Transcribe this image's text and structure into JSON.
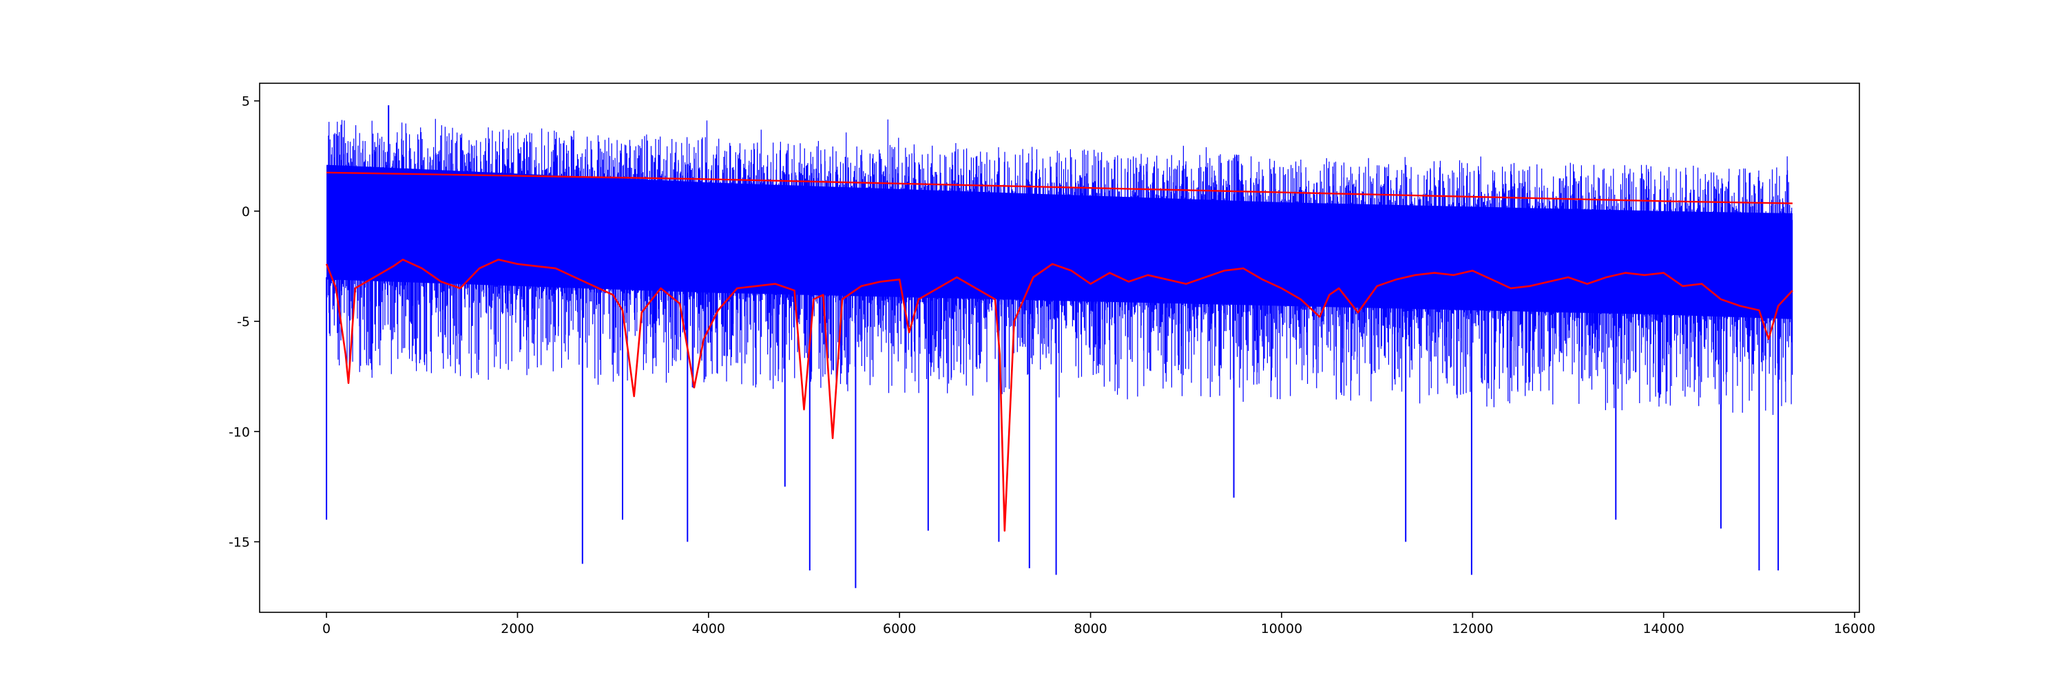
{
  "chart_data": {
    "type": "line",
    "title": "",
    "xlabel": "",
    "ylabel": "",
    "xlim": [
      -700,
      16050
    ],
    "ylim": [
      -18.2,
      5.8
    ],
    "grid": false,
    "legend": "none",
    "x_ticks": [
      {
        "value": 0,
        "label": "0"
      },
      {
        "value": 2000,
        "label": "2000"
      },
      {
        "value": 4000,
        "label": "4000"
      },
      {
        "value": 6000,
        "label": "6000"
      },
      {
        "value": 8000,
        "label": "8000"
      },
      {
        "value": 10000,
        "label": "10000"
      },
      {
        "value": 12000,
        "label": "12000"
      },
      {
        "value": 14000,
        "label": "14000"
      },
      {
        "value": 16000,
        "label": "16000"
      }
    ],
    "y_ticks": [
      {
        "value": 5,
        "label": "5"
      },
      {
        "value": 0,
        "label": "0"
      },
      {
        "value": -5,
        "label": "-5"
      },
      {
        "value": -10,
        "label": "-10"
      },
      {
        "value": -15,
        "label": "-15"
      }
    ],
    "series": [
      {
        "color": "#0000ff",
        "kind": "dense-band",
        "x_range": [
          0,
          15350
        ],
        "band_envelope": {
          "x": [
            0,
            2000,
            4000,
            6000,
            8000,
            10000,
            12000,
            14000,
            15350
          ],
          "upper": [
            3.0,
            2.6,
            2.2,
            1.9,
            1.6,
            1.3,
            1.1,
            0.9,
            0.8
          ],
          "lower": [
            -4.0,
            -4.3,
            -4.6,
            -4.8,
            -5.0,
            -5.2,
            -5.4,
            -5.6,
            -5.8
          ]
        },
        "spikes": {
          "x": [
            0,
            650,
            2680,
            3100,
            3780,
            4800,
            5060,
            5540,
            6300,
            7040,
            7360,
            7640,
            9500,
            11300,
            11990,
            13500,
            14600,
            15000,
            15200
          ],
          "y": [
            -14.0,
            4.8,
            -16.0,
            -14.0,
            -15.0,
            -12.5,
            -16.3,
            -17.1,
            -14.5,
            -15.0,
            -16.2,
            -16.5,
            -13.0,
            -15.0,
            -16.5,
            -14.0,
            -14.4,
            -16.3,
            -16.3
          ]
        }
      },
      {
        "color": "#ff0000",
        "kind": "smooth-trend",
        "x": [
          0,
          2000,
          4000,
          6000,
          8000,
          10000,
          12000,
          14000,
          15350
        ],
        "y": [
          1.75,
          1.6,
          1.45,
          1.25,
          1.05,
          0.85,
          0.65,
          0.45,
          0.35
        ]
      },
      {
        "color": "#ff0000",
        "kind": "noisy-line",
        "x": [
          0,
          100,
          200,
          230,
          300,
          500,
          700,
          800,
          1000,
          1200,
          1400,
          1600,
          1800,
          2000,
          2400,
          2600,
          2800,
          3000,
          3100,
          3220,
          3300,
          3500,
          3700,
          3850,
          3950,
          4100,
          4300,
          4500,
          4700,
          4900,
          5000,
          5100,
          5200,
          5300,
          5400,
          5600,
          5800,
          6000,
          6100,
          6200,
          6400,
          6600,
          6800,
          7000,
          7050,
          7100,
          7200,
          7400,
          7600,
          7800,
          8000,
          8200,
          8400,
          8600,
          8800,
          9000,
          9200,
          9400,
          9600,
          9800,
          10000,
          10200,
          10400,
          10500,
          10600,
          10800,
          11000,
          11200,
          11400,
          11600,
          11800,
          12000,
          12200,
          12400,
          12600,
          12800,
          13000,
          13200,
          13400,
          13600,
          13800,
          14000,
          14200,
          14400,
          14600,
          14800,
          15000,
          15100,
          15200,
          15350
        ],
        "y": [
          -2.4,
          -3.5,
          -6.5,
          -7.8,
          -3.5,
          -3.0,
          -2.5,
          -2.2,
          -2.6,
          -3.2,
          -3.5,
          -2.6,
          -2.2,
          -2.4,
          -2.6,
          -3.0,
          -3.4,
          -3.8,
          -4.5,
          -8.4,
          -4.6,
          -3.5,
          -4.2,
          -8.0,
          -5.8,
          -4.5,
          -3.5,
          -3.4,
          -3.3,
          -3.6,
          -9.0,
          -4.0,
          -3.8,
          -10.3,
          -4.0,
          -3.4,
          -3.2,
          -3.1,
          -5.5,
          -4.0,
          -3.5,
          -3.0,
          -3.5,
          -4.0,
          -6.5,
          -14.5,
          -5.0,
          -3.0,
          -2.4,
          -2.7,
          -3.3,
          -2.8,
          -3.2,
          -2.9,
          -3.1,
          -3.3,
          -3.0,
          -2.7,
          -2.6,
          -3.1,
          -3.5,
          -4.0,
          -4.8,
          -3.8,
          -3.5,
          -4.6,
          -3.4,
          -3.1,
          -2.9,
          -2.8,
          -2.9,
          -2.7,
          -3.1,
          -3.5,
          -3.4,
          -3.2,
          -3.0,
          -3.3,
          -3.0,
          -2.8,
          -2.9,
          -2.8,
          -3.4,
          -3.3,
          -4.0,
          -4.3,
          -4.5,
          -5.8,
          -4.3,
          -3.6
        ]
      }
    ]
  }
}
